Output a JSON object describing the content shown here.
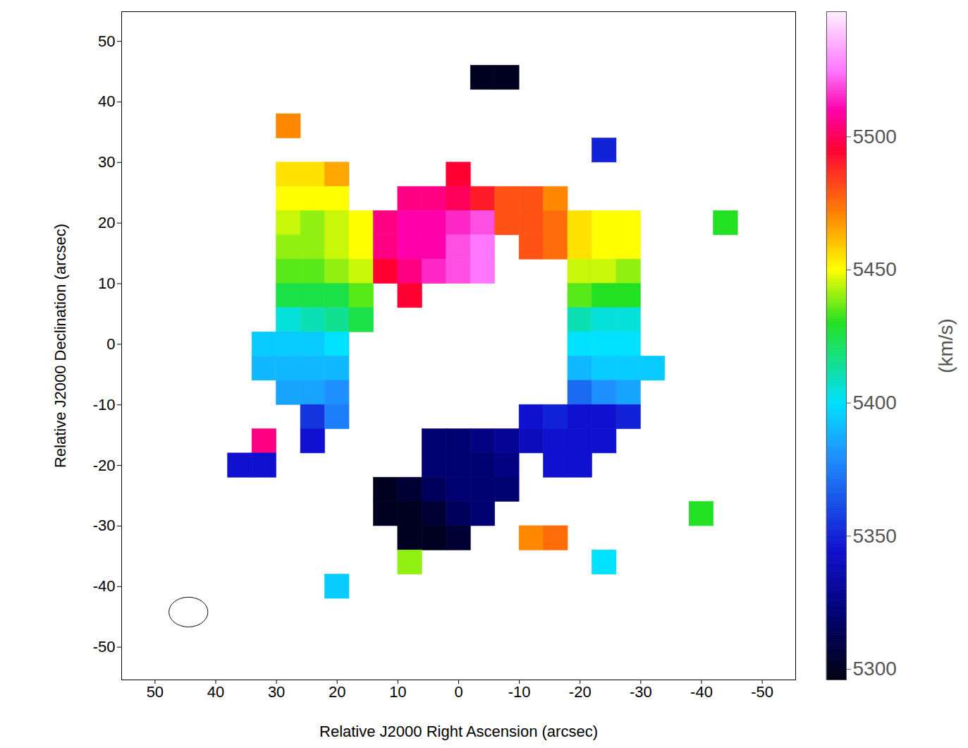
{
  "chart_data": {
    "type": "heatmap",
    "x_label": "Relative J2000 Right Ascension (arcsec)",
    "y_label": "Relative J2000 Declination (arcsec)",
    "xlim": [
      55.5,
      -55.5
    ],
    "xticks": [
      50,
      40,
      30,
      20,
      10,
      0,
      -10,
      -20,
      -30,
      -40,
      -50
    ],
    "ylim": [
      -55.4,
      54.9
    ],
    "yticks": [
      -50,
      -40,
      -30,
      -20,
      -10,
      0,
      10,
      20,
      30,
      40,
      50
    ],
    "cells": [
      [
        -4,
        44,
        5300
      ],
      [
        -8,
        44,
        5300
      ],
      [
        28,
        36,
        5470
      ],
      [
        -24,
        32,
        5350
      ],
      [
        28,
        28,
        5455
      ],
      [
        24,
        28,
        5455
      ],
      [
        20,
        28,
        5465
      ],
      [
        0,
        28,
        5495
      ],
      [
        28,
        24,
        5450
      ],
      [
        24,
        24,
        5450
      ],
      [
        20,
        24,
        5450
      ],
      [
        8,
        24,
        5505
      ],
      [
        4,
        24,
        5505
      ],
      [
        0,
        24,
        5500
      ],
      [
        -4,
        24,
        5490
      ],
      [
        -8,
        24,
        5480
      ],
      [
        -12,
        24,
        5480
      ],
      [
        -16,
        24,
        5470
      ],
      [
        28,
        20,
        5445
      ],
      [
        24,
        20,
        5440
      ],
      [
        20,
        20,
        5445
      ],
      [
        16,
        20,
        5450
      ],
      [
        12,
        20,
        5505
      ],
      [
        8,
        20,
        5510
      ],
      [
        4,
        20,
        5510
      ],
      [
        0,
        20,
        5515
      ],
      [
        -4,
        20,
        5520
      ],
      [
        -8,
        20,
        5480
      ],
      [
        -12,
        20,
        5480
      ],
      [
        -16,
        20,
        5475
      ],
      [
        -20,
        20,
        5455
      ],
      [
        -24,
        20,
        5450
      ],
      [
        -28,
        20,
        5450
      ],
      [
        -44,
        20,
        5430
      ],
      [
        28,
        16,
        5440
      ],
      [
        24,
        16,
        5440
      ],
      [
        20,
        16,
        5445
      ],
      [
        16,
        16,
        5450
      ],
      [
        12,
        16,
        5505
      ],
      [
        8,
        16,
        5510
      ],
      [
        4,
        16,
        5510
      ],
      [
        0,
        16,
        5520
      ],
      [
        -4,
        16,
        5525
      ],
      [
        -12,
        16,
        5480
      ],
      [
        -16,
        16,
        5475
      ],
      [
        -20,
        16,
        5455
      ],
      [
        -24,
        16,
        5450
      ],
      [
        -28,
        16,
        5450
      ],
      [
        28,
        12,
        5435
      ],
      [
        24,
        12,
        5435
      ],
      [
        20,
        12,
        5440
      ],
      [
        16,
        12,
        5445
      ],
      [
        12,
        12,
        5495
      ],
      [
        8,
        12,
        5505
      ],
      [
        4,
        12,
        5515
      ],
      [
        0,
        12,
        5520
      ],
      [
        -4,
        12,
        5525
      ],
      [
        -20,
        12,
        5445
      ],
      [
        -24,
        12,
        5445
      ],
      [
        -28,
        12,
        5440
      ],
      [
        28,
        8,
        5425
      ],
      [
        24,
        8,
        5425
      ],
      [
        20,
        8,
        5425
      ],
      [
        16,
        8,
        5435
      ],
      [
        8,
        8,
        5495
      ],
      [
        -20,
        8,
        5435
      ],
      [
        -24,
        8,
        5430
      ],
      [
        -28,
        8,
        5430
      ],
      [
        28,
        4,
        5405
      ],
      [
        24,
        4,
        5410
      ],
      [
        20,
        4,
        5415
      ],
      [
        16,
        4,
        5425
      ],
      [
        -20,
        4,
        5410
      ],
      [
        -24,
        4,
        5405
      ],
      [
        -28,
        4,
        5405
      ],
      [
        32,
        0,
        5395
      ],
      [
        28,
        0,
        5395
      ],
      [
        24,
        0,
        5395
      ],
      [
        20,
        0,
        5400
      ],
      [
        -20,
        0,
        5400
      ],
      [
        -24,
        0,
        5400
      ],
      [
        -28,
        0,
        5400
      ],
      [
        32,
        -4,
        5390
      ],
      [
        28,
        -4,
        5390
      ],
      [
        24,
        -4,
        5390
      ],
      [
        20,
        -4,
        5390
      ],
      [
        -20,
        -4,
        5390
      ],
      [
        -24,
        -4,
        5395
      ],
      [
        -28,
        -4,
        5395
      ],
      [
        -32,
        -4,
        5395
      ],
      [
        28,
        -8,
        5385
      ],
      [
        24,
        -8,
        5385
      ],
      [
        20,
        -8,
        5380
      ],
      [
        -20,
        -8,
        5370
      ],
      [
        -24,
        -8,
        5380
      ],
      [
        -28,
        -8,
        5385
      ],
      [
        24,
        -12,
        5355
      ],
      [
        20,
        -12,
        5375
      ],
      [
        -12,
        -12,
        5345
      ],
      [
        -16,
        -12,
        5350
      ],
      [
        -20,
        -12,
        5345
      ],
      [
        -24,
        -12,
        5345
      ],
      [
        -28,
        -12,
        5350
      ],
      [
        32,
        -16,
        5505
      ],
      [
        24,
        -16,
        5345
      ],
      [
        4,
        -16,
        5320
      ],
      [
        0,
        -16,
        5320
      ],
      [
        -4,
        -16,
        5325
      ],
      [
        -8,
        -16,
        5330
      ],
      [
        -12,
        -16,
        5340
      ],
      [
        -16,
        -16,
        5345
      ],
      [
        -20,
        -16,
        5345
      ],
      [
        -24,
        -16,
        5345
      ],
      [
        36,
        -20,
        5345
      ],
      [
        32,
        -20,
        5345
      ],
      [
        4,
        -20,
        5320
      ],
      [
        0,
        -20,
        5320
      ],
      [
        -4,
        -20,
        5320
      ],
      [
        -8,
        -20,
        5325
      ],
      [
        -16,
        -20,
        5345
      ],
      [
        -20,
        -20,
        5345
      ],
      [
        12,
        -24,
        5300
      ],
      [
        8,
        -24,
        5305
      ],
      [
        4,
        -24,
        5315
      ],
      [
        0,
        -24,
        5320
      ],
      [
        -4,
        -24,
        5320
      ],
      [
        -8,
        -24,
        5320
      ],
      [
        12,
        -28,
        5300
      ],
      [
        8,
        -28,
        5300
      ],
      [
        4,
        -28,
        5305
      ],
      [
        0,
        -28,
        5315
      ],
      [
        -4,
        -28,
        5320
      ],
      [
        -40,
        -28,
        5430
      ],
      [
        8,
        -32,
        5300
      ],
      [
        4,
        -32,
        5300
      ],
      [
        0,
        -32,
        5305
      ],
      [
        -12,
        -32,
        5470
      ],
      [
        -16,
        -32,
        5475
      ],
      [
        8,
        -36,
        5440
      ],
      [
        -24,
        -36,
        5400
      ],
      [
        20,
        -40,
        5395
      ]
    ],
    "colorbar": {
      "range": [
        5296,
        5547
      ],
      "ticks": [
        5300,
        5350,
        5400,
        5450,
        5500
      ],
      "label": "(km/s)",
      "stops": [
        5296,
        5320,
        5345,
        5380,
        5400,
        5430,
        5450,
        5470,
        5495,
        5510,
        5525,
        5547
      ],
      "colors": [
        "#000010",
        "#000070",
        "#1010d0",
        "#1e90ff",
        "#00e0ff",
        "#22e022",
        "#ffff00",
        "#ff8800",
        "#ff0033",
        "#ff00aa",
        "#ff77ff",
        "#fff0ff"
      ]
    },
    "beam": {
      "ra": 44.5,
      "dec": -44.2,
      "major": 6.4,
      "minor": 4.9
    }
  }
}
